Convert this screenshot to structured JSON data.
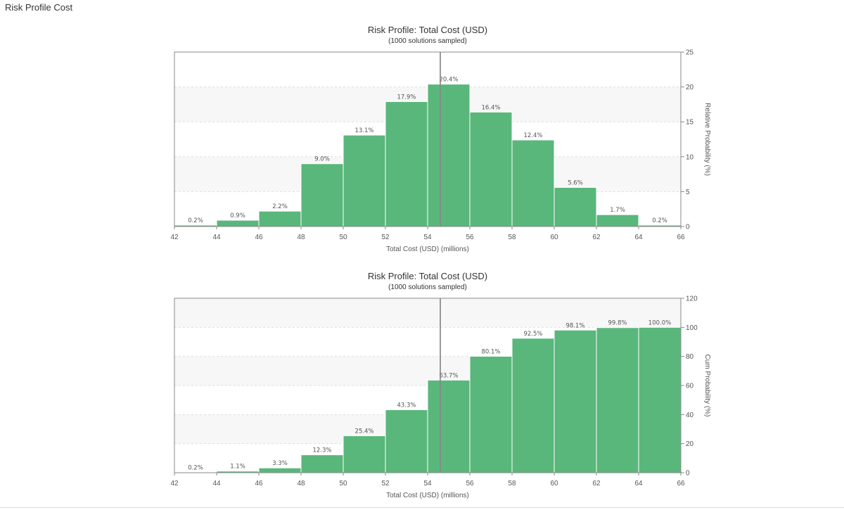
{
  "page": {
    "title": "Risk Profile Cost"
  },
  "style": {
    "bar_color": "#59b77b",
    "bar_edge_color": "#ffffff",
    "band_color": "#f7f7f7",
    "grid_color": "#dddddd",
    "frame_color": "#888888",
    "marker_color": "#888888"
  },
  "chart_data": [
    {
      "type": "bar",
      "title": "Risk Profile:  Total Cost (USD)",
      "subtitle": "(1000 solutions sampled)",
      "xlabel": "Total Cost (USD) (millions)",
      "ylabel": "Relative Probability (%)",
      "xlim": [
        42,
        66
      ],
      "ylim": [
        0,
        25
      ],
      "x_ticks": [
        42,
        44,
        46,
        48,
        50,
        52,
        54,
        56,
        58,
        60,
        62,
        64,
        66
      ],
      "y_ticks": [
        0,
        5,
        10,
        15,
        20,
        25
      ],
      "y_axis_side": "right",
      "grid": true,
      "bin_edges": [
        42,
        44,
        46,
        48,
        50,
        52,
        54,
        56,
        58,
        60,
        62,
        64,
        66
      ],
      "values": [
        0.2,
        0.9,
        2.2,
        9.0,
        13.1,
        17.9,
        20.4,
        16.4,
        12.4,
        5.6,
        1.7,
        0.2
      ],
      "data_labels": [
        "0.2%",
        "0.9%",
        "2.2%",
        "9.0%",
        "13.1%",
        "17.9%",
        "20.4%",
        "16.4%",
        "12.4%",
        "5.6%",
        "1.7%",
        "0.2%"
      ],
      "reference_line_x": 54.6
    },
    {
      "type": "bar",
      "title": "Risk Profile:  Total Cost (USD)",
      "subtitle": "(1000 solutions sampled)",
      "xlabel": "Total Cost (USD) (millions)",
      "ylabel": "Cum Probability (%)",
      "xlim": [
        42,
        66
      ],
      "ylim": [
        0,
        120
      ],
      "x_ticks": [
        42,
        44,
        46,
        48,
        50,
        52,
        54,
        56,
        58,
        60,
        62,
        64,
        66
      ],
      "y_ticks": [
        0,
        20,
        40,
        60,
        80,
        100,
        120
      ],
      "y_axis_side": "right",
      "grid": true,
      "bin_edges": [
        42,
        44,
        46,
        48,
        50,
        52,
        54,
        56,
        58,
        60,
        62,
        64,
        66
      ],
      "values": [
        0.2,
        1.1,
        3.3,
        12.3,
        25.4,
        43.3,
        63.7,
        80.1,
        92.5,
        98.1,
        99.8,
        100.0
      ],
      "data_labels": [
        "0.2%",
        "1.1%",
        "3.3%",
        "12.3%",
        "25.4%",
        "43.3%",
        "63.7%",
        "80.1%",
        "92.5%",
        "98.1%",
        "99.8%",
        "100.0%"
      ],
      "reference_line_x": 54.6
    }
  ]
}
